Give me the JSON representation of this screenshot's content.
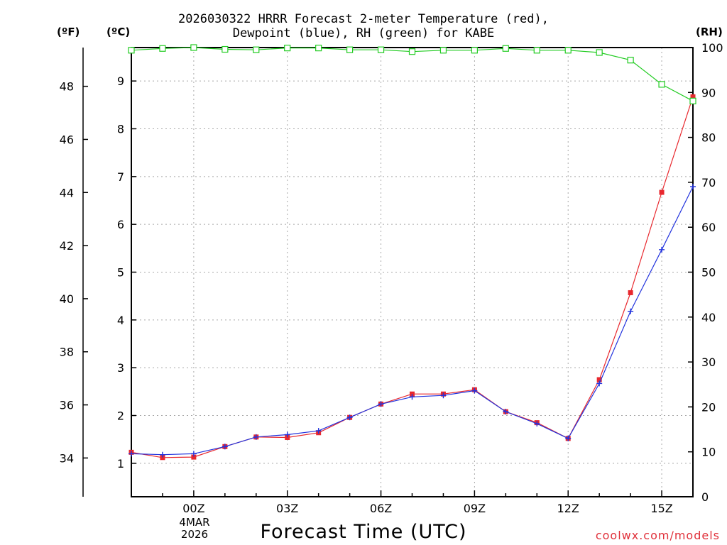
{
  "chart_data": {
    "type": "line",
    "title_line1": "2026030322 HRRR Forecast 2-meter Temperature (red),",
    "title_line2": "Dewpoint (blue), RH (green) for KABE",
    "xlabel": "Forecast Time (UTC)",
    "credit": "coolwx.com/models",
    "units": {
      "fahrenheit": "(ºF)",
      "celsius": "(ºC)",
      "rh": "(RH)"
    },
    "date_label": {
      "day_month": "4MAR",
      "year": "2026"
    },
    "x": [
      -2,
      -1,
      0,
      1,
      2,
      3,
      4,
      5,
      6,
      7,
      8,
      9,
      10,
      11,
      12,
      13,
      14,
      15,
      16
    ],
    "xlim": [
      -2,
      16
    ],
    "x_ticks": [
      {
        "x": 0,
        "label": "00Z"
      },
      {
        "x": 3,
        "label": "03Z"
      },
      {
        "x": 6,
        "label": "06Z"
      },
      {
        "x": 9,
        "label": "09Z"
      },
      {
        "x": 12,
        "label": "12Z"
      },
      {
        "x": 15,
        "label": "15Z"
      }
    ],
    "ylim_c": [
      0.3,
      9.7
    ],
    "y_ticks_c": [
      1,
      2,
      3,
      4,
      5,
      6,
      7,
      8,
      9
    ],
    "y_ticks_f": [
      34,
      36,
      38,
      40,
      42,
      44,
      46,
      48
    ],
    "ylim_rh": [
      0,
      100
    ],
    "y_ticks_rh": [
      0,
      10,
      20,
      30,
      40,
      50,
      60,
      70,
      80,
      90,
      100
    ],
    "grid": true,
    "series": [
      {
        "name": "Temperature",
        "color": "#e8282e",
        "marker": "filled-square",
        "axis": "celsius",
        "values": [
          1.23,
          1.12,
          1.13,
          1.35,
          1.55,
          1.54,
          1.64,
          1.96,
          2.24,
          2.45,
          2.45,
          2.54,
          2.08,
          1.85,
          1.52,
          2.75,
          4.57,
          6.67,
          8.67
        ]
      },
      {
        "name": "Dewpoint",
        "color": "#2233dd",
        "marker": "plus",
        "axis": "celsius",
        "values": [
          1.2,
          1.18,
          1.2,
          1.35,
          1.55,
          1.6,
          1.68,
          1.96,
          2.24,
          2.39,
          2.42,
          2.52,
          2.08,
          1.83,
          1.52,
          2.67,
          4.18,
          5.47,
          6.79
        ]
      },
      {
        "name": "RH",
        "color": "#22cc22",
        "marker": "open-square",
        "axis": "rh",
        "values": [
          99.4,
          99.8,
          100.0,
          99.6,
          99.5,
          99.9,
          99.9,
          99.5,
          99.5,
          99.1,
          99.4,
          99.4,
          99.8,
          99.4,
          99.4,
          98.9,
          97.2,
          91.8,
          88.1
        ]
      }
    ]
  }
}
